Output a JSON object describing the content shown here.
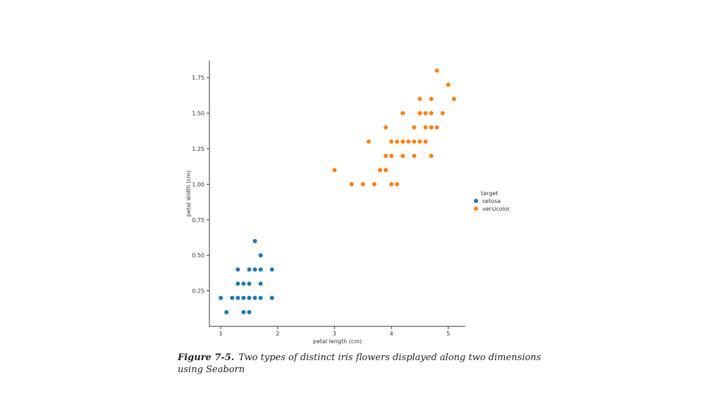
{
  "caption": {
    "label": "Figure 7-5.",
    "text": "Two types of distinct iris flowers displayed along two dimensions using Seaborn"
  },
  "chart_data": {
    "type": "scatter",
    "title": "",
    "xlabel": "petal length (cm)",
    "ylabel": "petal width (cm)",
    "xlim": [
      0.8,
      5.3
    ],
    "ylim": [
      0.0,
      1.87
    ],
    "xticks": [
      1,
      2,
      3,
      4,
      5
    ],
    "yticks": [
      0.25,
      0.5,
      0.75,
      1.0,
      1.25,
      1.5,
      1.75
    ],
    "xtick_labels": [
      "1",
      "2",
      "3",
      "4",
      "5"
    ],
    "ytick_labels": [
      "0.25",
      "0.50",
      "0.75",
      "1.00",
      "1.25",
      "1.50",
      "1.75"
    ],
    "grid": false,
    "legend": {
      "title": "target",
      "placement": "right"
    },
    "series": [
      {
        "name": "setosa",
        "color": "#1f77b4",
        "points": [
          [
            1.0,
            0.2
          ],
          [
            1.1,
            0.1
          ],
          [
            1.2,
            0.2
          ],
          [
            1.3,
            0.2
          ],
          [
            1.3,
            0.3
          ],
          [
            1.3,
            0.4
          ],
          [
            1.4,
            0.1
          ],
          [
            1.4,
            0.2
          ],
          [
            1.4,
            0.3
          ],
          [
            1.5,
            0.1
          ],
          [
            1.5,
            0.2
          ],
          [
            1.5,
            0.3
          ],
          [
            1.5,
            0.4
          ],
          [
            1.6,
            0.2
          ],
          [
            1.6,
            0.4
          ],
          [
            1.6,
            0.6
          ],
          [
            1.7,
            0.2
          ],
          [
            1.7,
            0.3
          ],
          [
            1.7,
            0.4
          ],
          [
            1.7,
            0.5
          ],
          [
            1.9,
            0.2
          ],
          [
            1.9,
            0.4
          ]
        ]
      },
      {
        "name": "versicolor",
        "color": "#ff7f0e",
        "points": [
          [
            3.0,
            1.1
          ],
          [
            3.3,
            1.0
          ],
          [
            3.5,
            1.0
          ],
          [
            3.6,
            1.3
          ],
          [
            3.7,
            1.0
          ],
          [
            3.8,
            1.1
          ],
          [
            3.9,
            1.1
          ],
          [
            3.9,
            1.2
          ],
          [
            3.9,
            1.4
          ],
          [
            4.0,
            1.0
          ],
          [
            4.0,
            1.2
          ],
          [
            4.0,
            1.3
          ],
          [
            4.1,
            1.0
          ],
          [
            4.1,
            1.3
          ],
          [
            4.2,
            1.2
          ],
          [
            4.2,
            1.3
          ],
          [
            4.2,
            1.5
          ],
          [
            4.3,
            1.3
          ],
          [
            4.4,
            1.2
          ],
          [
            4.4,
            1.3
          ],
          [
            4.4,
            1.4
          ],
          [
            4.5,
            1.3
          ],
          [
            4.5,
            1.5
          ],
          [
            4.5,
            1.6
          ],
          [
            4.6,
            1.3
          ],
          [
            4.6,
            1.4
          ],
          [
            4.6,
            1.5
          ],
          [
            4.7,
            1.2
          ],
          [
            4.7,
            1.4
          ],
          [
            4.7,
            1.5
          ],
          [
            4.7,
            1.6
          ],
          [
            4.8,
            1.4
          ],
          [
            4.8,
            1.8
          ],
          [
            4.9,
            1.5
          ],
          [
            5.0,
            1.7
          ],
          [
            5.1,
            1.6
          ]
        ]
      }
    ]
  }
}
